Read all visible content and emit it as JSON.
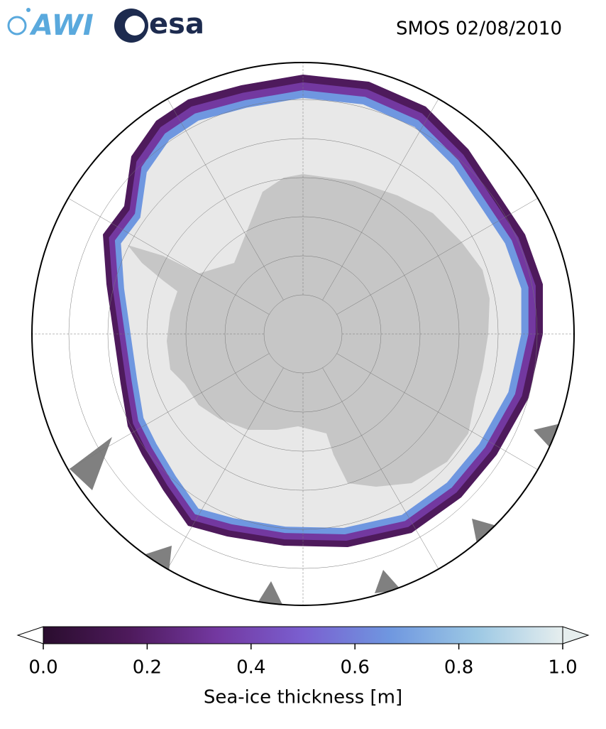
{
  "header": {
    "logos": [
      "AWI",
      "esa"
    ],
    "title": "SMOS 02/08/2010"
  },
  "colorbar": {
    "label": "Sea-ice thickness [m]",
    "range": [
      0,
      1
    ],
    "ticks": [
      {
        "value": 0,
        "label": "0.0"
      },
      0.2,
      0.4,
      0.6,
      0.8,
      {
        "value": 1,
        "label": "1.0"
      }
    ],
    "colors": [
      "#2a0d2e",
      "#4e1a5c",
      "#7338a0",
      "#7a5fd0",
      "#6f97e0",
      "#9cc8e4",
      "#e6eeee"
    ]
  }
}
